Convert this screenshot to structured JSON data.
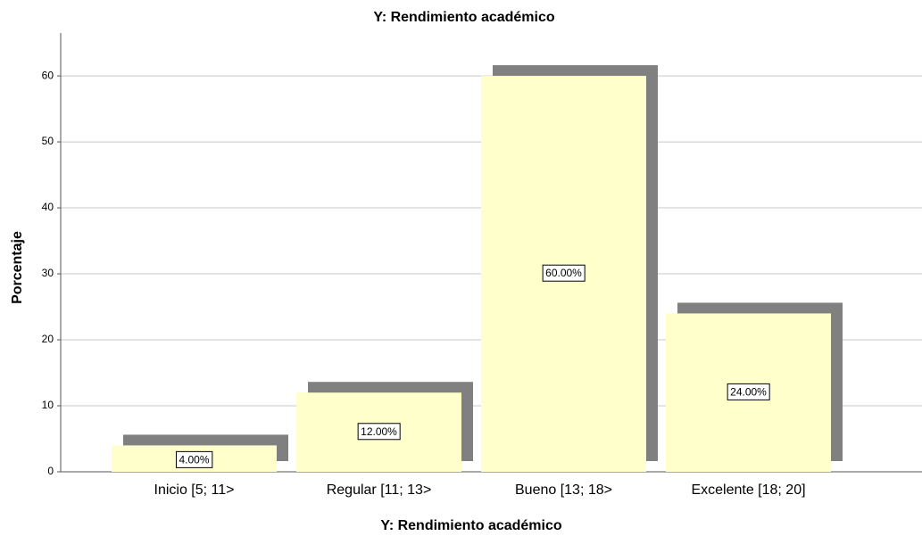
{
  "chart_data": {
    "type": "bar",
    "title": "Y: Rendimiento académico",
    "x_label": "Y: Rendimiento académico",
    "y_label": "Porcentaje",
    "categories": [
      "Inicio  [5; 11>",
      "Regular  [11; 13>",
      "Bueno  [13; 18>",
      "Excelente [18; 20]"
    ],
    "values": [
      4,
      12,
      60,
      24
    ],
    "value_labels": [
      "4.00%",
      "12.00%",
      "60.00%",
      "24.00%"
    ],
    "color": "#ffffcc",
    "shadow_color": "#808080",
    "ylim": [
      0,
      66.5
    ],
    "yticks": [
      0,
      10,
      20,
      30,
      40,
      50,
      60
    ],
    "grid": true
  }
}
